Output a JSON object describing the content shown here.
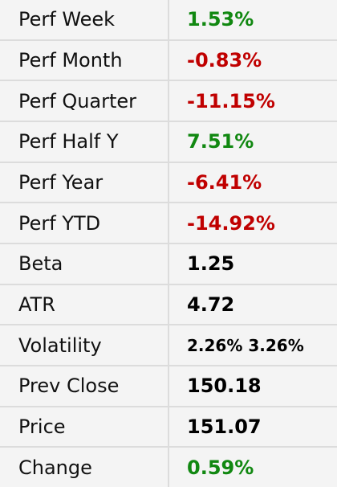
{
  "stats": [
    {
      "label": "Perf Week",
      "value": "1.53%",
      "tone": "pos"
    },
    {
      "label": "Perf Month",
      "value": "-0.83%",
      "tone": "neg"
    },
    {
      "label": "Perf Quarter",
      "value": "-11.15%",
      "tone": "neg"
    },
    {
      "label": "Perf Half Y",
      "value": "7.51%",
      "tone": "pos"
    },
    {
      "label": "Perf Year",
      "value": "-6.41%",
      "tone": "neg"
    },
    {
      "label": "Perf YTD",
      "value": "-14.92%",
      "tone": "neg"
    },
    {
      "label": "Beta",
      "value": "1.25",
      "tone": "neu"
    },
    {
      "label": "ATR",
      "value": "4.72",
      "tone": "neu"
    },
    {
      "label": "Volatility",
      "value": "2.26% 3.26%",
      "tone": "neu"
    },
    {
      "label": "Prev Close",
      "value": "150.18",
      "tone": "neu"
    },
    {
      "label": "Price",
      "value": "151.07",
      "tone": "neu"
    },
    {
      "label": "Change",
      "value": "0.59%",
      "tone": "pos"
    }
  ],
  "colors": {
    "positive": "#118811",
    "negative": "#c00000",
    "neutral": "#000000",
    "background": "#f4f4f4",
    "divider": "#dcdcdc"
  }
}
